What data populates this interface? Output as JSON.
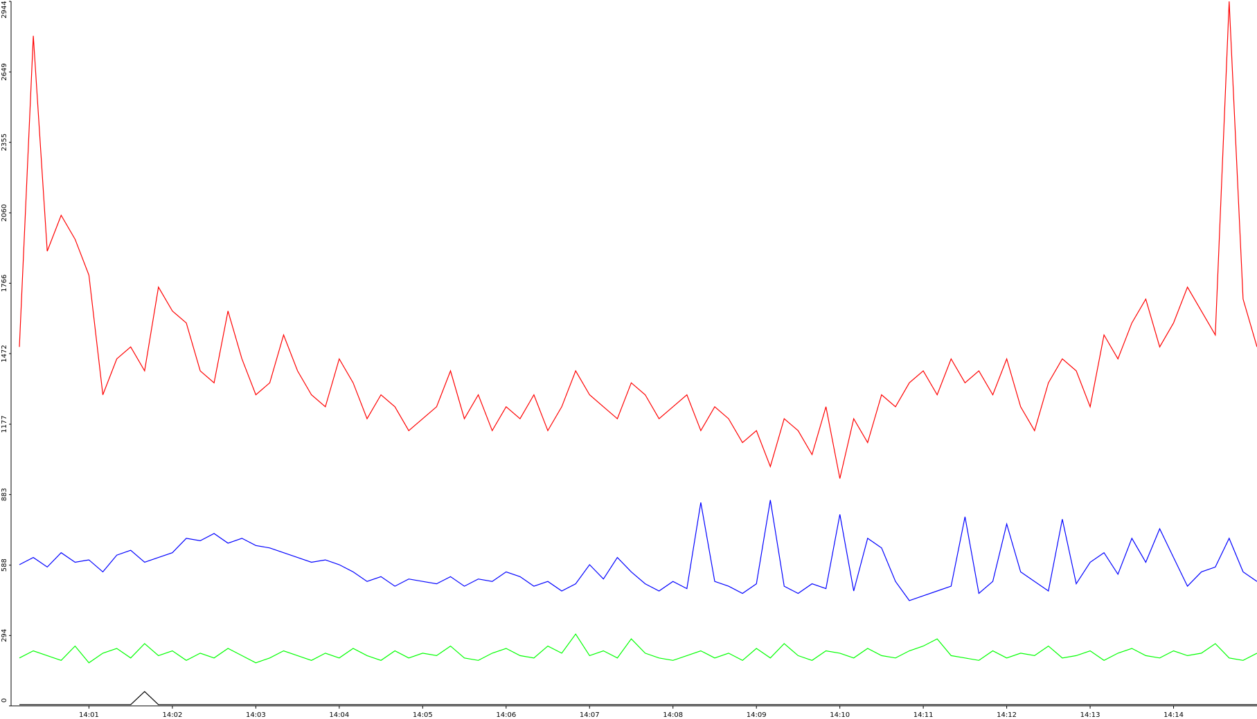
{
  "chart_data": {
    "type": "line",
    "x": [
      10,
      20,
      30,
      40,
      50,
      60,
      70,
      80,
      90,
      100,
      110,
      120,
      130,
      140,
      150,
      160,
      170,
      180,
      190,
      200,
      210,
      220,
      230,
      240,
      250,
      260,
      270,
      280,
      290,
      300,
      310,
      320,
      330,
      340,
      350,
      360,
      370,
      380,
      390,
      400,
      410,
      420,
      430,
      440,
      450,
      460,
      470,
      480,
      490,
      500,
      510,
      520,
      530,
      540,
      550,
      560,
      570,
      580,
      590,
      600,
      610,
      620,
      630,
      640,
      650,
      660,
      670,
      680,
      690,
      700,
      710,
      720,
      730,
      740,
      750,
      760,
      770,
      780,
      790,
      800,
      810,
      820,
      830,
      840,
      850,
      860,
      870,
      880,
      890,
      900
    ],
    "series": [
      {
        "color": "#ff0000",
        "values": [
          1500,
          2800,
          1900,
          2050,
          1950,
          1800,
          1300,
          1450,
          1500,
          1400,
          1750,
          1650,
          1600,
          1400,
          1350,
          1650,
          1450,
          1300,
          1350,
          1550,
          1400,
          1300,
          1250,
          1450,
          1350,
          1200,
          1300,
          1250,
          1150,
          1200,
          1250,
          1400,
          1200,
          1300,
          1150,
          1250,
          1200,
          1300,
          1150,
          1250,
          1400,
          1300,
          1250,
          1200,
          1350,
          1300,
          1200,
          1250,
          1300,
          1150,
          1250,
          1200,
          1100,
          1150,
          1000,
          1200,
          1150,
          1050,
          1250,
          950,
          1200,
          1100,
          1300,
          1250,
          1350,
          1400,
          1300,
          1450,
          1350,
          1400,
          1300,
          1450,
          1250,
          1150,
          1350,
          1450,
          1400,
          1250,
          1550,
          1450,
          1600,
          1700,
          1500,
          1600,
          1750,
          1650,
          1550,
          2944,
          1700,
          1500
        ]
      },
      {
        "color": "#0000ff",
        "values": [
          590,
          620,
          580,
          640,
          600,
          610,
          560,
          630,
          650,
          600,
          620,
          640,
          700,
          690,
          720,
          680,
          700,
          670,
          660,
          640,
          620,
          600,
          610,
          590,
          560,
          520,
          540,
          500,
          530,
          520,
          510,
          540,
          500,
          530,
          520,
          560,
          540,
          500,
          520,
          480,
          510,
          590,
          530,
          620,
          560,
          510,
          480,
          520,
          490,
          850,
          520,
          500,
          470,
          510,
          860,
          500,
          470,
          510,
          490,
          800,
          480,
          700,
          660,
          520,
          440,
          460,
          480,
          500,
          790,
          470,
          520,
          760,
          560,
          520,
          480,
          780,
          510,
          600,
          640,
          550,
          700,
          600,
          740,
          620,
          500,
          560,
          580,
          700,
          560,
          520
        ]
      },
      {
        "color": "#00ff00",
        "values": [
          200,
          230,
          210,
          190,
          250,
          180,
          220,
          240,
          200,
          260,
          210,
          230,
          190,
          220,
          200,
          240,
          210,
          180,
          200,
          230,
          210,
          190,
          220,
          200,
          240,
          210,
          190,
          230,
          200,
          220,
          210,
          250,
          200,
          190,
          220,
          240,
          210,
          200,
          250,
          220,
          300,
          210,
          230,
          200,
          280,
          220,
          200,
          190,
          210,
          230,
          200,
          220,
          190,
          240,
          200,
          260,
          210,
          190,
          230,
          220,
          200,
          240,
          210,
          200,
          230,
          250,
          280,
          210,
          200,
          190,
          230,
          200,
          220,
          210,
          250,
          200,
          210,
          230,
          190,
          220,
          240,
          210,
          200,
          230,
          210,
          220,
          260,
          200,
          190,
          220
        ]
      },
      {
        "color": "#000000",
        "values": [
          5,
          5,
          5,
          5,
          5,
          5,
          5,
          5,
          5,
          60,
          5,
          5,
          5,
          5,
          5,
          5,
          5,
          5,
          5,
          5,
          5,
          5,
          5,
          5,
          5,
          5,
          5,
          5,
          5,
          5,
          5,
          5,
          5,
          5,
          5,
          5,
          5,
          5,
          5,
          5,
          5,
          5,
          5,
          5,
          5,
          5,
          5,
          5,
          5,
          5,
          5,
          5,
          5,
          5,
          5,
          5,
          5,
          5,
          5,
          5,
          5,
          5,
          5,
          5,
          5,
          5,
          5,
          5,
          5,
          5,
          5,
          5,
          5,
          5,
          5,
          5,
          5,
          5,
          5,
          5,
          5,
          5,
          5,
          5,
          5,
          5,
          5,
          5,
          5,
          5
        ]
      }
    ],
    "xlim": [
      4,
      900
    ],
    "xticks": [
      {
        "value": 60,
        "label": "14:01"
      },
      {
        "value": 120,
        "label": "14:02"
      },
      {
        "value": 180,
        "label": "14:03"
      },
      {
        "value": 240,
        "label": "14:04"
      },
      {
        "value": 300,
        "label": "14:05"
      },
      {
        "value": 360,
        "label": "14:06"
      },
      {
        "value": 420,
        "label": "14:07"
      },
      {
        "value": 480,
        "label": "14:08"
      },
      {
        "value": 540,
        "label": "14:09"
      },
      {
        "value": 600,
        "label": "14:10"
      },
      {
        "value": 660,
        "label": "14:11"
      },
      {
        "value": 720,
        "label": "14:12"
      },
      {
        "value": 780,
        "label": "14:13"
      },
      {
        "value": 840,
        "label": "14:14"
      }
    ],
    "ylim": [
      0,
      2944
    ],
    "yticks": [
      0,
      294,
      588,
      883,
      1177,
      1472,
      1766,
      2060,
      2355,
      2649,
      2944
    ]
  }
}
